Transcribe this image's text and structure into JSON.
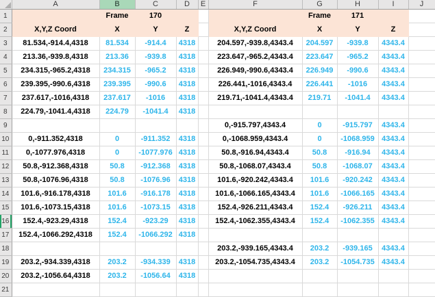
{
  "grid": {
    "columns": [
      "A",
      "B",
      "C",
      "D",
      "E",
      "F",
      "G",
      "H",
      "I",
      "J"
    ],
    "row_labels": [
      "1",
      "2",
      "3",
      "4",
      "5",
      "6",
      "7",
      "8",
      "9",
      "10",
      "11",
      "12",
      "13",
      "14",
      "15",
      "16",
      "17",
      "18",
      "19",
      "20",
      "21"
    ]
  },
  "selection": {
    "active_column": "B",
    "active_row": 16
  },
  "left_table": {
    "frame_label": "Frame",
    "frame_number": "170",
    "coord_header": "X,Y,Z Coord",
    "axis_headers": [
      "X",
      "Y",
      "Z"
    ],
    "rows": [
      [
        "81.534,-914.4,4318",
        "81.534",
        "-914.4",
        "4318"
      ],
      [
        "213.36,-939.8,4318",
        "213.36",
        "-939.8",
        "4318"
      ],
      [
        "234.315,-965.2,4318",
        "234.315",
        "-965.2",
        "4318"
      ],
      [
        "239.395,-990.6,4318",
        "239.395",
        "-990.6",
        "4318"
      ],
      [
        "237.617,-1016,4318",
        "237.617",
        "-1016",
        "4318"
      ],
      [
        "224.79,-1041.4,4318",
        "224.79",
        "-1041.4",
        "4318"
      ],
      [
        "",
        "",
        "",
        ""
      ],
      [
        "0,-911.352,4318",
        "0",
        "-911.352",
        "4318"
      ],
      [
        "0,-1077.976,4318",
        "0",
        "-1077.976",
        "4318"
      ],
      [
        "50.8,-912.368,4318",
        "50.8",
        "-912.368",
        "4318"
      ],
      [
        "50.8,-1076.96,4318",
        "50.8",
        "-1076.96",
        "4318"
      ],
      [
        "101.6,-916.178,4318",
        "101.6",
        "-916.178",
        "4318"
      ],
      [
        "101.6,-1073.15,4318",
        "101.6",
        "-1073.15",
        "4318"
      ],
      [
        "152.4,-923.29,4318",
        "152.4",
        "-923.29",
        "4318"
      ],
      [
        "152.4,-1066.292,4318",
        "152.4",
        "-1066.292",
        "4318"
      ],
      [
        "",
        "",
        "",
        ""
      ],
      [
        "203.2,-934.339,4318",
        "203.2",
        "-934.339",
        "4318"
      ],
      [
        "203.2,-1056.64,4318",
        "203.2",
        "-1056.64",
        "4318"
      ],
      [
        "",
        "",
        "",
        ""
      ]
    ]
  },
  "right_table": {
    "frame_label": "Frame",
    "frame_number": "171",
    "coord_header": "X,Y,Z Coord",
    "axis_headers": [
      "X",
      "Y",
      "Z"
    ],
    "rows": [
      [
        "204.597,-939.8,4343.4",
        "204.597",
        "-939.8",
        "4343.4"
      ],
      [
        "223.647,-965.2,4343.4",
        "223.647",
        "-965.2",
        "4343.4"
      ],
      [
        "226.949,-990.6,4343.4",
        "226.949",
        "-990.6",
        "4343.4"
      ],
      [
        "226.441,-1016,4343.4",
        "226.441",
        "-1016",
        "4343.4"
      ],
      [
        "219.71,-1041.4,4343.4",
        "219.71",
        "-1041.4",
        "4343.4"
      ],
      [
        "",
        "",
        "",
        ""
      ],
      [
        "0,-915.797,4343.4",
        "0",
        "-915.797",
        "4343.4"
      ],
      [
        "0,-1068.959,4343.4",
        "0",
        "-1068.959",
        "4343.4"
      ],
      [
        "50.8,-916.94,4343.4",
        "50.8",
        "-916.94",
        "4343.4"
      ],
      [
        "50.8,-1068.07,4343.4",
        "50.8",
        "-1068.07",
        "4343.4"
      ],
      [
        "101.6,-920.242,4343.4",
        "101.6",
        "-920.242",
        "4343.4"
      ],
      [
        "101.6,-1066.165,4343.4",
        "101.6",
        "-1066.165",
        "4343.4"
      ],
      [
        "152.4,-926.211,4343.4",
        "152.4",
        "-926.211",
        "4343.4"
      ],
      [
        "152.4,-1062.355,4343.4",
        "152.4",
        "-1062.355",
        "4343.4"
      ],
      [
        "",
        "",
        "",
        ""
      ],
      [
        "203.2,-939.165,4343.4",
        "203.2",
        "-939.165",
        "4343.4"
      ],
      [
        "203.2,-1054.735,4343.4",
        "203.2",
        "-1054.735",
        "4343.4"
      ],
      [
        "",
        "",
        "",
        ""
      ],
      [
        "",
        "",
        "",
        ""
      ]
    ]
  },
  "colors": {
    "header_fill": "#FCE4D6",
    "value_text_blue": "#2EB5EA",
    "selected_column_fill": "#A9D8B8",
    "selection_accent_green": "#21A366",
    "chrome_fill": "#E7E6E6",
    "gridline": "#D9D9D9"
  }
}
